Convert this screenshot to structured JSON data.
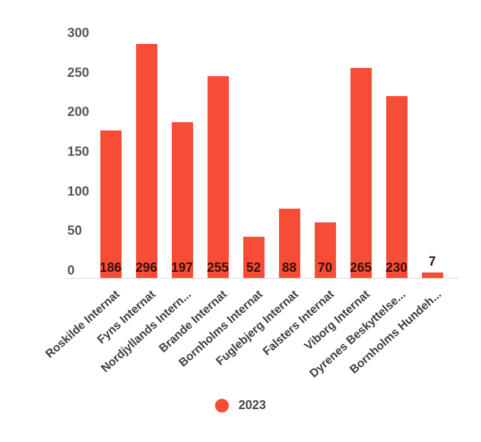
{
  "chart_data": {
    "type": "bar",
    "title": "",
    "xlabel": "",
    "ylabel": "",
    "categories": [
      "Roskilde Internat",
      "Fyns Internat",
      "Nordjyllands Intern...",
      "Brande Internat",
      "Bornholms Internat",
      "Fuglebjerg Internat",
      "Falsters Internat",
      "Viborg Internat",
      "Dyrenes Beskyttelse...",
      "Bornholms Hundeh..."
    ],
    "series": [
      {
        "name": "2023",
        "color": "#f74c35",
        "values": [
          186,
          296,
          197,
          255,
          52,
          88,
          70,
          265,
          230,
          7
        ]
      }
    ],
    "value_labels": [
      "186",
      "296",
      "197",
      "255",
      "52",
      "88",
      "70",
      "265",
      "230",
      "7"
    ],
    "y_ticks": [
      0,
      50,
      100,
      150,
      200,
      250,
      300
    ],
    "ylim": [
      0,
      300
    ],
    "grid": false,
    "legend_position": "bottom",
    "category_label_rotation_deg": -42
  },
  "colors": {
    "bar": "#f74c35",
    "axis_label": "#565656",
    "category_label": "#3e3e3e",
    "value_label": "#33100a",
    "legend_label": "#454545",
    "baseline": "#d6d6d6",
    "background": "#ffffff"
  }
}
